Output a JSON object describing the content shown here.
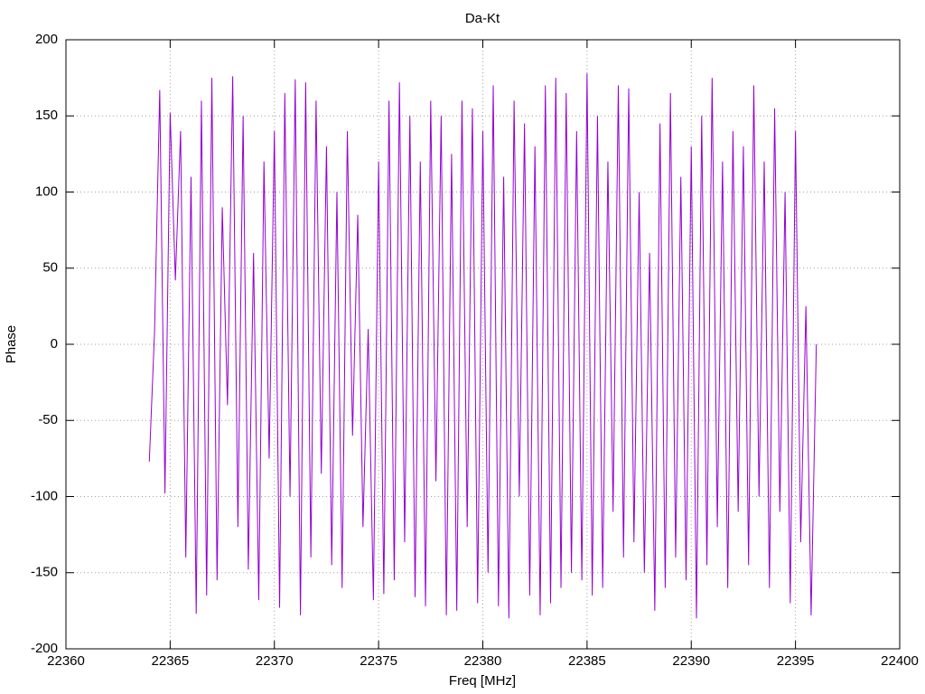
{
  "chart_data": {
    "type": "line",
    "title": "Da-Kt",
    "x_label": "Freq [MHz]",
    "y_label": "Phase",
    "xlim": [
      22360,
      22400
    ],
    "xticks": [
      22360,
      22365,
      22370,
      22375,
      22380,
      22385,
      22390,
      22395,
      22400
    ],
    "ylim": [
      -200,
      200
    ],
    "yticks": [
      -200,
      -150,
      -100,
      -50,
      0,
      50,
      100,
      150,
      200
    ],
    "grid": true,
    "series": [
      {
        "color": "#9400d3",
        "x": [
          22364,
          22364.25,
          22364.5,
          22364.75,
          22365,
          22365.25,
          22365.5,
          22365.75,
          22366,
          22366.25,
          22366.5,
          22366.75,
          22367,
          22367.25,
          22367.5,
          22367.75,
          22368,
          22368.25,
          22368.5,
          22368.75,
          22369,
          22369.25,
          22369.5,
          22369.75,
          22370,
          22370.25,
          22370.5,
          22370.75,
          22371,
          22371.25,
          22371.5,
          22371.75,
          22372,
          22372.25,
          22372.5,
          22372.75,
          22373,
          22373.25,
          22373.5,
          22373.75,
          22374,
          22374.25,
          22374.5,
          22374.75,
          22375,
          22375.25,
          22375.5,
          22375.75,
          22376,
          22376.25,
          22376.5,
          22376.75,
          22377,
          22377.25,
          22377.5,
          22377.75,
          22378,
          22378.25,
          22378.5,
          22378.75,
          22379,
          22379.25,
          22379.5,
          22379.75,
          22380,
          22380.25,
          22380.5,
          22380.75,
          22381,
          22381.25,
          22381.5,
          22381.75,
          22382,
          22382.25,
          22382.5,
          22382.75,
          22383,
          22383.25,
          22383.5,
          22383.75,
          22384,
          22384.25,
          22384.5,
          22384.75,
          22385,
          22385.25,
          22385.5,
          22385.75,
          22386,
          22386.25,
          22386.5,
          22386.75,
          22387,
          22387.25,
          22387.5,
          22387.75,
          22388,
          22388.25,
          22388.5,
          22388.75,
          22389,
          22389.25,
          22389.5,
          22389.75,
          22390,
          22390.25,
          22390.5,
          22390.75,
          22391,
          22391.25,
          22391.5,
          22391.75,
          22392,
          22392.25,
          22392.5,
          22392.75,
          22393,
          22393.25,
          22393.5,
          22393.75,
          22394,
          22394.25,
          22394.5,
          22394.75,
          22395,
          22395.25,
          22395.5,
          22395.75,
          22396
        ],
        "values": [
          -77,
          8,
          167,
          -98,
          152,
          42,
          140,
          -140,
          110,
          -177,
          160,
          -165,
          175,
          -155,
          90,
          -40,
          176,
          -120,
          150,
          -148,
          60,
          -168,
          120,
          -75,
          140,
          -173,
          165,
          -100,
          174,
          -178,
          172,
          -140,
          160,
          -85,
          130,
          -145,
          100,
          -160,
          140,
          -60,
          85,
          -120,
          10,
          -168,
          120,
          -164,
          160,
          -155,
          172,
          -130,
          150,
          -166,
          120,
          -172,
          160,
          -90,
          150,
          -178,
          125,
          -175,
          160,
          -120,
          155,
          -170,
          140,
          -150,
          170,
          -172,
          110,
          -180,
          160,
          -100,
          145,
          -165,
          130,
          -178,
          170,
          -170,
          175,
          -160,
          165,
          -150,
          140,
          -155,
          178,
          -165,
          150,
          -160,
          120,
          -110,
          170,
          -140,
          168,
          -130,
          100,
          -150,
          60,
          -175,
          145,
          -160,
          165,
          -140,
          110,
          -155,
          130,
          -180,
          150,
          -145,
          175,
          -120,
          120,
          -160,
          140,
          -110,
          130,
          -145,
          170,
          -100,
          120,
          -160,
          155,
          -110,
          100,
          -170,
          140,
          -130,
          25,
          -178,
          0
        ]
      }
    ]
  }
}
